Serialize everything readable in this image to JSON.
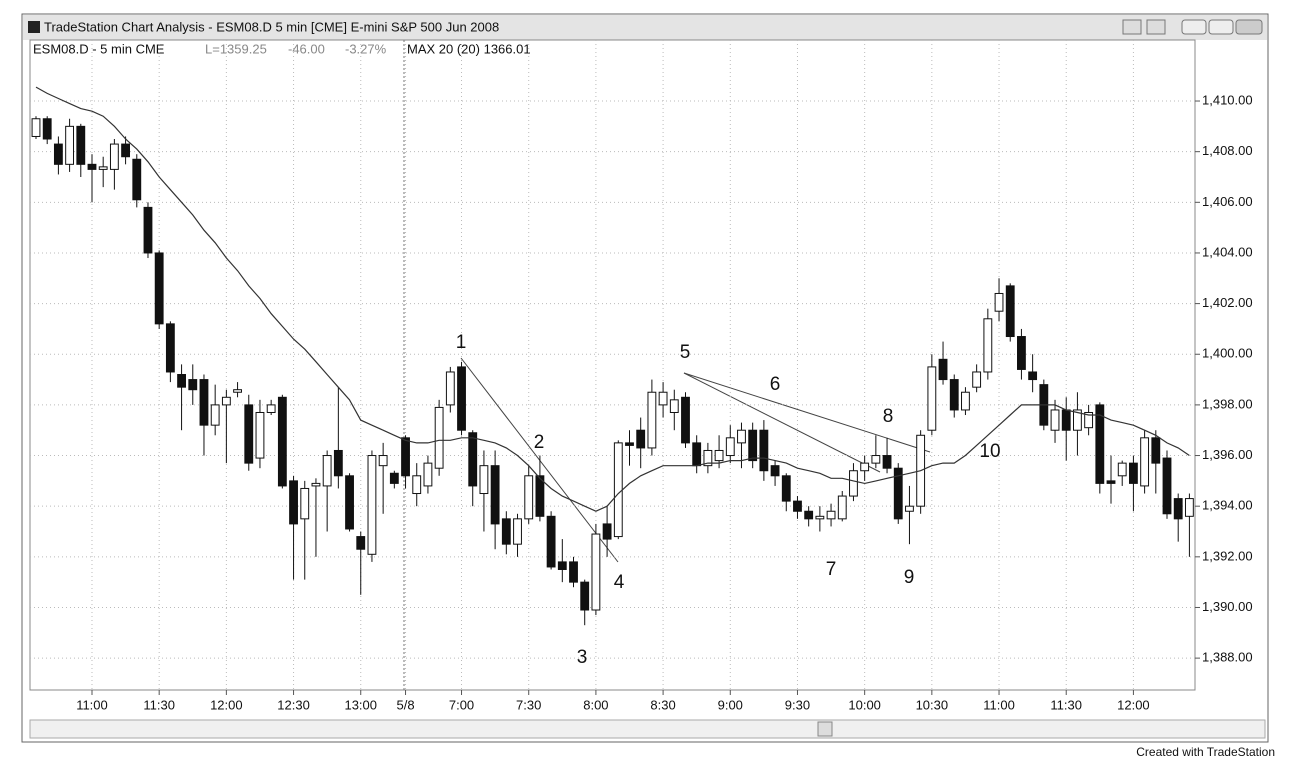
{
  "window": {
    "title": "TradeStation Chart Analysis - ESM08.D 5 min [CME] E-mini S&P 500 Jun 2008",
    "footer": "Created with TradeStation"
  },
  "chart_data": {
    "type": "candlestick",
    "symbol": "ESM08.D - 5 min CME",
    "last": "L=1359.25",
    "change": "-46.00",
    "change_pct": "-3.27%",
    "indicator": "MAX 20 (20) 1366.01",
    "categories": [
      null,
      null,
      null,
      null,
      null,
      "11:00",
      null,
      null,
      null,
      null,
      null,
      "11:30",
      null,
      null,
      null,
      null,
      null,
      "12:00",
      null,
      null,
      null,
      null,
      null,
      "12:30",
      null,
      null,
      null,
      null,
      null,
      "13:00",
      null,
      null,
      null,
      "5/8",
      null,
      null,
      null,
      null,
      "7:00",
      null,
      null,
      null,
      null,
      null,
      "7:30",
      null,
      null,
      null,
      null,
      null,
      "8:00",
      null,
      null,
      null,
      null,
      null,
      "8:30",
      null,
      null,
      null,
      null,
      null,
      "9:00",
      null,
      null,
      null,
      null,
      null,
      "9:30",
      null,
      null,
      null,
      null,
      null,
      "10:00",
      null,
      null,
      null,
      null,
      null,
      "10:30",
      null,
      null,
      null,
      null,
      null,
      "11:00",
      null,
      null,
      null,
      null,
      null,
      "11:30",
      null,
      null,
      null,
      null,
      null,
      "12:00",
      null,
      null,
      null,
      null,
      null
    ],
    "open": [
      1408.6,
      1409.3,
      1408.3,
      1407.5,
      1409.0,
      1407.5,
      1407.3,
      1407.3,
      1408.3,
      1407.7,
      1405.8,
      1404.0,
      1401.2,
      1399.2,
      1399.0,
      1399.0,
      1397.2,
      1398.0,
      1398.5,
      1398.0,
      1395.9,
      1397.7,
      1398.3,
      1395.0,
      1393.5,
      1394.8,
      1394.8,
      1396.2,
      1395.2,
      1392.8,
      1392.1,
      1395.6,
      1395.3,
      1396.7,
      1394.5,
      1394.8,
      1395.5,
      1398.0,
      1399.5,
      1396.9,
      1394.5,
      1395.6,
      1393.5,
      1392.5,
      1393.5,
      1395.2,
      1393.6,
      1391.8,
      1391.8,
      1391.0,
      1389.9,
      1393.3,
      1392.8,
      1396.5,
      1397.0,
      1396.3,
      1398.0,
      1397.7,
      1398.3,
      1396.5,
      1395.6,
      1395.8,
      1396.0,
      1396.5,
      1397.0,
      1397.0,
      1395.6,
      1395.2,
      1394.2,
      1393.8,
      1393.5,
      1393.5,
      1393.5,
      1394.4,
      1395.4,
      1395.7,
      1396.0,
      1395.5,
      1393.8,
      1394.0,
      1397.0,
      1399.8,
      1399.0,
      1397.8,
      1398.7,
      1399.3,
      1401.7,
      1402.7,
      1400.7,
      1399.3,
      1398.8,
      1397.0,
      1397.8,
      1397.0,
      1397.1,
      1398.0,
      1395.0,
      1395.2,
      1395.7,
      1394.8,
      1396.7,
      1395.9,
      1394.3,
      1393.6
    ],
    "high": [
      1409.4,
      1409.4,
      1408.6,
      1409.3,
      1409.1,
      1407.9,
      1407.8,
      1408.5,
      1408.6,
      1407.9,
      1406.0,
      1404.1,
      1401.3,
      1399.6,
      1399.6,
      1399.2,
      1398.8,
      1398.6,
      1398.9,
      1398.4,
      1398.2,
      1398.2,
      1398.4,
      1395.2,
      1395.0,
      1395.1,
      1396.2,
      1398.7,
      1395.3,
      1393.0,
      1396.2,
      1396.5,
      1395.4,
      1396.8,
      1395.7,
      1396.0,
      1398.2,
      1399.5,
      1399.7,
      1397.0,
      1396.2,
      1396.2,
      1393.8,
      1393.7,
      1395.6,
      1396.0,
      1393.8,
      1392.7,
      1392.0,
      1391.1,
      1393.3,
      1394.0,
      1396.6,
      1397.0,
      1397.5,
      1399.0,
      1398.9,
      1398.6,
      1398.5,
      1396.8,
      1396.5,
      1396.8,
      1397.2,
      1397.3,
      1397.3,
      1397.4,
      1395.8,
      1395.3,
      1394.4,
      1394.0,
      1394.0,
      1394.1,
      1394.6,
      1395.7,
      1396.0,
      1396.8,
      1396.7,
      1395.7,
      1394.8,
      1397.0,
      1400.0,
      1400.5,
      1399.2,
      1398.7,
      1399.6,
      1401.8,
      1403.0,
      1402.8,
      1401.0,
      1400.0,
      1399.0,
      1398.2,
      1398.3,
      1398.5,
      1398.0,
      1398.1,
      1396.0,
      1395.8,
      1396.0,
      1397.0,
      1397.0,
      1396.2,
      1394.5,
      1394.5
    ],
    "low": [
      1408.5,
      1408.3,
      1407.1,
      1407.2,
      1407.0,
      1406.0,
      1406.6,
      1406.5,
      1407.5,
      1405.8,
      1403.8,
      1401.0,
      1398.9,
      1397.0,
      1398.0,
      1396.0,
      1396.8,
      1395.7,
      1398.3,
      1395.4,
      1395.5,
      1397.6,
      1394.7,
      1391.1,
      1391.1,
      1392.0,
      1393.0,
      1394.7,
      1393.0,
      1390.5,
      1391.8,
      1393.7,
      1394.7,
      1394.7,
      1394.0,
      1394.5,
      1395.2,
      1397.7,
      1396.8,
      1394.0,
      1393.0,
      1392.3,
      1392.1,
      1392.0,
      1393.3,
      1393.4,
      1391.5,
      1391.0,
      1390.8,
      1389.3,
      1389.7,
      1392.0,
      1392.7,
      1395.6,
      1395.5,
      1396.0,
      1397.5,
      1397.0,
      1396.3,
      1395.3,
      1395.3,
      1395.5,
      1395.7,
      1395.5,
      1395.5,
      1395.0,
      1394.8,
      1393.8,
      1393.5,
      1393.2,
      1393.0,
      1393.2,
      1393.4,
      1394.2,
      1395.0,
      1395.5,
      1395.3,
      1393.3,
      1392.5,
      1393.7,
      1396.8,
      1398.8,
      1397.5,
      1397.6,
      1398.5,
      1399.0,
      1401.3,
      1400.5,
      1399.0,
      1398.5,
      1397.0,
      1396.5,
      1395.8,
      1396.0,
      1396.8,
      1394.5,
      1394.1,
      1394.8,
      1393.8,
      1394.5,
      1394.5,
      1393.5,
      1392.6,
      1392.0
    ],
    "close": [
      1409.3,
      1408.5,
      1407.5,
      1409.0,
      1407.5,
      1407.3,
      1407.4,
      1408.3,
      1407.8,
      1406.1,
      1404.0,
      1401.2,
      1399.3,
      1398.7,
      1398.6,
      1397.2,
      1398.0,
      1398.3,
      1398.6,
      1395.7,
      1397.7,
      1398.0,
      1394.8,
      1393.3,
      1394.7,
      1394.9,
      1396.0,
      1395.2,
      1393.1,
      1392.3,
      1396.0,
      1396.0,
      1394.9,
      1395.2,
      1395.2,
      1395.7,
      1397.9,
      1399.3,
      1397.0,
      1394.8,
      1395.6,
      1393.3,
      1392.5,
      1393.5,
      1395.2,
      1393.6,
      1391.6,
      1391.5,
      1391.0,
      1389.9,
      1392.9,
      1392.7,
      1396.5,
      1396.4,
      1396.3,
      1398.5,
      1398.5,
      1398.2,
      1396.5,
      1395.6,
      1396.2,
      1396.2,
      1396.7,
      1397.0,
      1395.8,
      1395.4,
      1395.2,
      1394.2,
      1393.8,
      1393.5,
      1393.6,
      1393.8,
      1394.4,
      1395.4,
      1395.7,
      1396.0,
      1395.5,
      1393.5,
      1394.0,
      1396.8,
      1399.5,
      1399.0,
      1397.8,
      1398.5,
      1399.3,
      1401.4,
      1402.4,
      1400.7,
      1399.4,
      1399.0,
      1397.2,
      1397.8,
      1397.0,
      1397.8,
      1397.7,
      1394.9,
      1394.9,
      1395.7,
      1394.9,
      1396.7,
      1395.7,
      1393.7,
      1393.5,
      1394.3
    ],
    "up_color": "#ffffff",
    "down_color": "#111111",
    "ma": {
      "color": "#333333",
      "values": [
        1410.55,
        1410.3,
        1410.1,
        1409.9,
        1409.7,
        1409.6,
        1409.4,
        1409.0,
        1408.5,
        1408.1,
        1407.6,
        1407.0,
        1406.5,
        1406.0,
        1405.5,
        1404.9,
        1404.4,
        1403.8,
        1403.3,
        1402.7,
        1402.2,
        1401.6,
        1401.1,
        1400.6,
        1400.2,
        1399.7,
        1399.2,
        1398.7,
        1398.2,
        1397.4,
        1397.2,
        1397.0,
        1396.8,
        1396.6,
        1396.5,
        1396.5,
        1396.6,
        1396.6,
        1396.7,
        1396.7,
        1396.6,
        1396.5,
        1396.3,
        1396.0,
        1395.6,
        1395.1,
        1394.7,
        1394.4,
        1394.2,
        1394.0,
        1393.8,
        1394.0,
        1394.5,
        1394.9,
        1395.2,
        1395.4,
        1395.6,
        1395.6,
        1395.6,
        1395.6,
        1395.7,
        1395.7,
        1395.8,
        1395.8,
        1395.9,
        1395.9,
        1395.8,
        1395.7,
        1395.5,
        1395.4,
        1395.3,
        1395.1,
        1395.1,
        1395.0,
        1394.9,
        1395.0,
        1395.1,
        1395.2,
        1395.3,
        1395.4,
        1395.6,
        1395.7,
        1395.7,
        1396.0,
        1396.4,
        1396.8,
        1397.2,
        1397.6,
        1398.0,
        1398.0,
        1398.0,
        1398.0,
        1397.8,
        1397.7,
        1397.6,
        1397.6,
        1397.4,
        1397.3,
        1397.2,
        1397.0,
        1396.8,
        1396.5,
        1396.3,
        1396.0
      ]
    },
    "ylim": [
      1386.82,
      1411.62
    ],
    "yticks": [
      {
        "value": 1388,
        "label": "1,388.00"
      },
      {
        "value": 1390,
        "label": "1,390.00"
      },
      {
        "value": 1392,
        "label": "1,392.00"
      },
      {
        "value": 1394,
        "label": "1,394.00"
      },
      {
        "value": 1396,
        "label": "1,396.00"
      },
      {
        "value": 1398,
        "label": "1,398.00"
      },
      {
        "value": 1400,
        "label": "1,400.00"
      },
      {
        "value": 1402,
        "label": "1,402.00"
      },
      {
        "value": 1404,
        "label": "1,404.00"
      },
      {
        "value": 1406,
        "label": "1,406.00"
      },
      {
        "value": 1408,
        "label": "1,408.00"
      },
      {
        "value": 1410,
        "label": "1,410.00"
      }
    ],
    "grid": true,
    "annotations": [
      "1",
      "2",
      "3",
      "4",
      "5",
      "6",
      "7",
      "8",
      "9",
      "10"
    ]
  }
}
